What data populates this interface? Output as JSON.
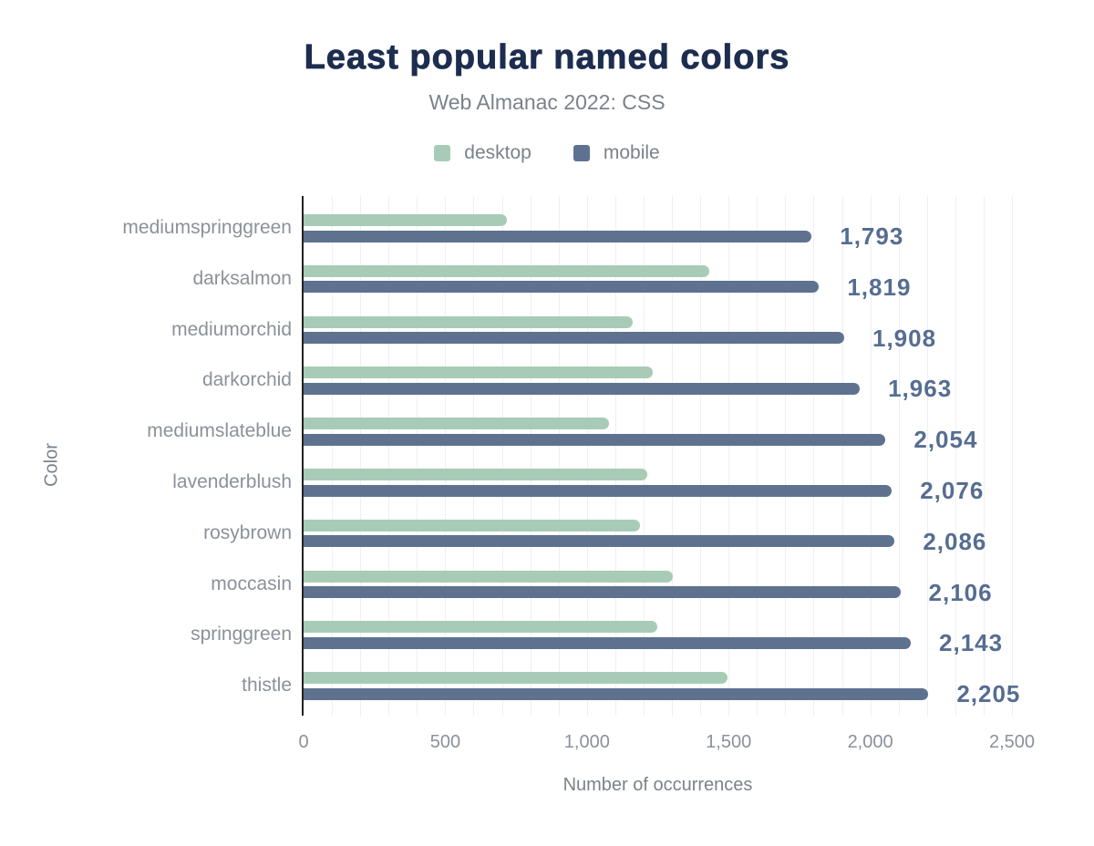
{
  "title": "Least popular named colors",
  "subtitle": "Web Almanac 2022: CSS",
  "colors": {
    "title": "#1d2d4e",
    "subtitle": "#7b828c",
    "axis_text": "#8b919a",
    "axis_line": "#222222",
    "gridline": "#f0f0f0",
    "desktop_bar": "#a8cbb7",
    "mobile_bar": "#5e7290",
    "value_label": "#566d92",
    "background": "#ffffff"
  },
  "chart_data": {
    "type": "bar",
    "orientation": "horizontal",
    "title": "Least popular named colors",
    "subtitle": "Web Almanac 2022: CSS",
    "xlabel": "Number of occurrences",
    "ylabel": "Color",
    "xlim": [
      0,
      2500
    ],
    "xticks": [
      0,
      500,
      1000,
      1500,
      2000,
      2500
    ],
    "xtick_labels": [
      "0",
      "500",
      "1,000",
      "1,500",
      "2,000",
      "2,500"
    ],
    "grid": "vertical, minor every 100",
    "legend_position": "top",
    "categories": [
      "mediumspringgreen",
      "darksalmon",
      "mediumorchid",
      "darkorchid",
      "mediumslateblue",
      "lavenderblush",
      "rosybrown",
      "moccasin",
      "springgreen",
      "thistle"
    ],
    "series": [
      {
        "name": "desktop",
        "color": "#a8cbb7",
        "values_estimated_from_pixels": true,
        "values": [
          717,
          1431,
          1161,
          1232,
          1077,
          1213,
          1186,
          1302,
          1248,
          1495
        ]
      },
      {
        "name": "mobile",
        "color": "#5e7290",
        "values": [
          1793,
          1819,
          1908,
          1963,
          2054,
          2076,
          2086,
          2106,
          2143,
          2205
        ]
      }
    ],
    "value_labels": {
      "series": "mobile",
      "formatted": [
        "1,793",
        "1,819",
        "1,908",
        "1,963",
        "2,054",
        "2,076",
        "2,086",
        "2,106",
        "2,143",
        "2,205"
      ]
    }
  }
}
